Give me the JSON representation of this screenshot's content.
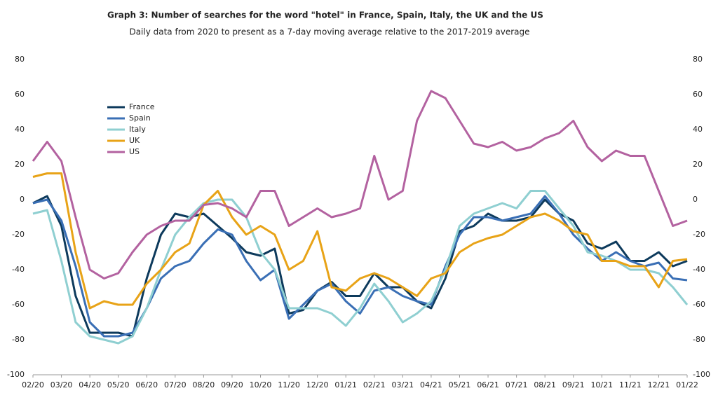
{
  "chart_data": {
    "type": "line",
    "title": "Graph 3: Number of searches for the word \"hotel\" in France, Spain, Italy, the UK and the US",
    "subtitle": "Daily data from 2020 to present as a 7-day moving average relative to the 2017-2019 average",
    "categories": [
      "02/20",
      null,
      "03/20",
      null,
      "04/20",
      null,
      "05/20",
      null,
      "06/20",
      null,
      "07/20",
      null,
      "08/20",
      null,
      "09/20",
      null,
      "10/20",
      null,
      "11/20",
      null,
      "12/20",
      null,
      "01/21",
      null,
      "02/21",
      null,
      "03/21",
      null,
      "04/21",
      null,
      "05/21",
      null,
      "06/21",
      null,
      "07/21",
      null,
      "08/21",
      null,
      "09/21",
      null,
      "10/21",
      null,
      "11/21",
      null,
      "12/21",
      null,
      "01/22"
    ],
    "series": [
      {
        "name": "France",
        "color": "#0d3a5c",
        "values": [
          -2,
          2,
          -15,
          -55,
          -76,
          -76,
          -76,
          -78,
          -45,
          -20,
          -8,
          -10,
          -8,
          -15,
          -22,
          -30,
          -32,
          -28,
          -65,
          -63,
          -52,
          -47,
          -55,
          -55,
          -42,
          -50,
          -50,
          -58,
          -62,
          -45,
          -18,
          -15,
          -8,
          -12,
          -12,
          -10,
          0,
          -8,
          -12,
          -25,
          -28,
          -24,
          -35,
          -35,
          -30,
          -38,
          -35
        ]
      },
      {
        "name": "Spain",
        "color": "#3a6fb5",
        "values": [
          -2,
          0,
          -12,
          -38,
          -70,
          -78,
          -78,
          -76,
          -62,
          -45,
          -38,
          -35,
          -25,
          -17,
          -20,
          -35,
          -46,
          -40,
          -68,
          -60,
          -52,
          -48,
          -58,
          -65,
          -52,
          -50,
          -55,
          -58,
          -60,
          -38,
          -20,
          -10,
          -10,
          -12,
          -10,
          -8,
          2,
          -8,
          -20,
          -28,
          -35,
          -30,
          -35,
          -38,
          -36,
          -45,
          -46
        ]
      },
      {
        "name": "Italy",
        "color": "#8fcfd1",
        "values": [
          -8,
          -6,
          -35,
          -70,
          -78,
          -80,
          -82,
          -78,
          -62,
          -40,
          -20,
          -10,
          -2,
          0,
          0,
          -10,
          -30,
          -40,
          -62,
          -62,
          -62,
          -65,
          -72,
          -62,
          -48,
          -58,
          -70,
          -65,
          -58,
          -40,
          -15,
          -8,
          -5,
          -2,
          -5,
          5,
          5,
          -5,
          -15,
          -30,
          -32,
          -35,
          -40,
          -40,
          -42,
          -50,
          -60
        ]
      },
      {
        "name": "UK",
        "color": "#e8a317",
        "values": [
          13,
          15,
          15,
          -30,
          -62,
          -58,
          -60,
          -60,
          -48,
          -40,
          -30,
          -25,
          -3,
          5,
          -10,
          -20,
          -15,
          -20,
          -40,
          -35,
          -18,
          -50,
          -52,
          -45,
          -42,
          -45,
          -50,
          -55,
          -45,
          -42,
          -30,
          -25,
          -22,
          -20,
          -15,
          -10,
          -8,
          -12,
          -18,
          -20,
          -35,
          -35,
          -38,
          -38,
          -50,
          -35,
          -34
        ]
      },
      {
        "name": "US",
        "color": "#b362a0",
        "values": [
          22,
          33,
          22,
          -10,
          -40,
          -45,
          -42,
          -30,
          -20,
          -15,
          -12,
          -12,
          -3,
          -2,
          -5,
          -10,
          5,
          5,
          -15,
          -10,
          -5,
          -10,
          -8,
          -5,
          25,
          0,
          5,
          45,
          62,
          58,
          45,
          32,
          30,
          33,
          28,
          30,
          35,
          38,
          45,
          30,
          22,
          28,
          25,
          25,
          5,
          -15,
          -12
        ]
      }
    ],
    "ylim": [
      -100,
      80
    ],
    "yticks": [
      -100,
      -80,
      -60,
      -40,
      -20,
      0,
      20,
      40,
      60,
      80
    ],
    "grid": false,
    "legend": "upper left"
  }
}
